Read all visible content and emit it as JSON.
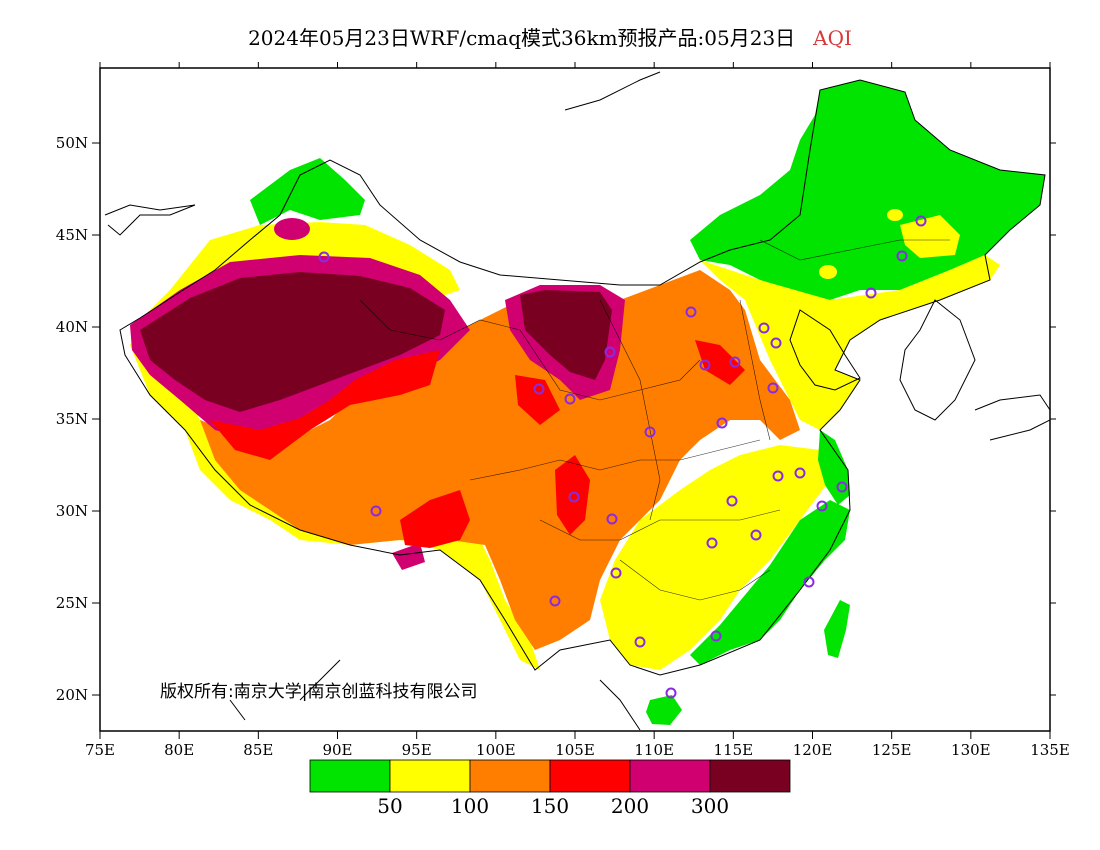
{
  "title": {
    "main": "2024年05月23日WRF/cmaq模式36km预报产品:05月23日",
    "variable": "AQI",
    "variable_color": "#d63a3a"
  },
  "axes": {
    "x_ticks": [
      "75E",
      "80E",
      "85E",
      "90E",
      "95E",
      "100E",
      "105E",
      "110E",
      "115E",
      "120E",
      "125E",
      "130E",
      "135E"
    ],
    "y_ticks": [
      "50N",
      "45N",
      "40N",
      "35N",
      "30N",
      "25N",
      "20N"
    ]
  },
  "colorbar": {
    "colors": [
      "#00e400",
      "#ffff00",
      "#ff7e00",
      "#ff0000",
      "#d00070",
      "#7a0022"
    ],
    "labels": [
      "50",
      "100",
      "150",
      "200",
      "300"
    ]
  },
  "copyright": "版权所有:南京大学|南京创蓝科技有限公司",
  "legend_levels": {
    "good": "#00e400",
    "moderate": "#ffff00",
    "sensitive": "#ff7e00",
    "unhealthy": "#ff0000",
    "very_unhealthy": "#d00070",
    "hazardous": "#7a0022"
  },
  "station_marker_color": "#8a2be2"
}
